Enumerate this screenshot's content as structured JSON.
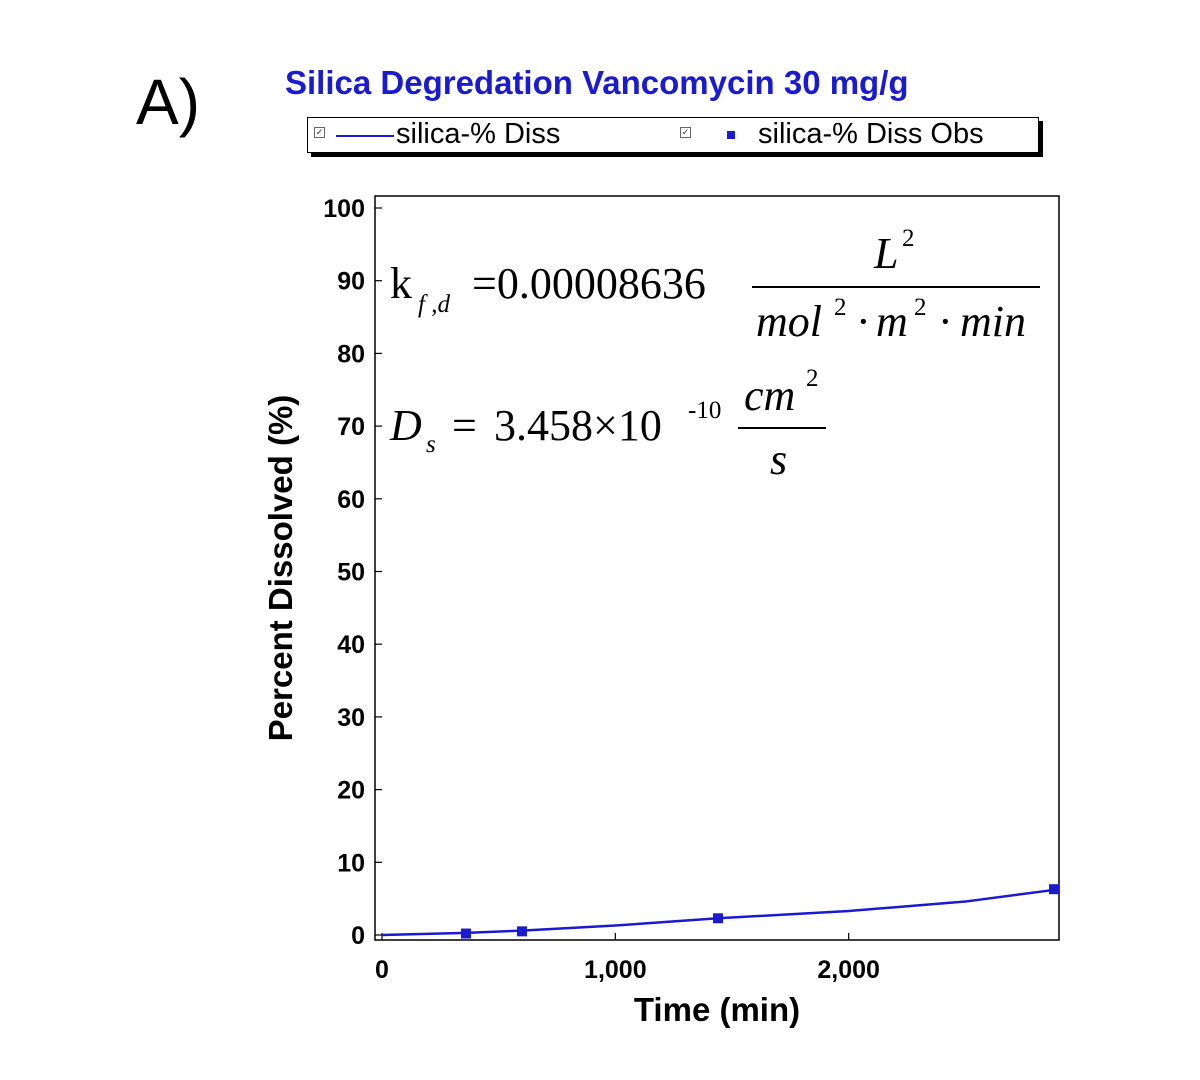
{
  "panel_label": "A)",
  "annotations": {
    "kfd": {
      "symbol_main": "k",
      "symbol_sub": "f ,d",
      "equals_value": "=0.00008636",
      "numerator": "L",
      "numerator_exp": "2",
      "den_mol": "mol",
      "den_mol_exp": "2",
      "den_dot1": "·",
      "den_m": "m",
      "den_m_exp": "2",
      "den_dot2": "·",
      "den_min": "min"
    },
    "ds": {
      "symbol_main": "D",
      "symbol_sub": "s",
      "equals": "=",
      "value": "3.458×10",
      "exponent": "-10",
      "numerator": "cm",
      "numerator_exp": "2",
      "denominator": "s"
    }
  },
  "colors": {
    "series": "#1a1acf",
    "title": "#1a1acf",
    "axis": "#000000"
  },
  "chart_data": {
    "type": "line",
    "title": "Silica Degredation Vancomycin 30 mg/g",
    "xlabel": "Time (min)",
    "ylabel": "Percent Dissolved (%)",
    "xlim": [
      0,
      2880
    ],
    "ylim": [
      0,
      100
    ],
    "x_ticks": [
      0,
      1000,
      2000
    ],
    "x_tick_labels": [
      "0",
      "1,000",
      "2,000"
    ],
    "y_ticks": [
      0,
      10,
      20,
      30,
      40,
      50,
      60,
      70,
      80,
      90,
      100
    ],
    "y_tick_labels": [
      "0",
      "10",
      "20",
      "30",
      "40",
      "50",
      "60",
      "70",
      "80",
      "90",
      "100"
    ],
    "grid": false,
    "legend_position": "top",
    "series": [
      {
        "name": "silica-% Diss",
        "style": "line",
        "x": [
          0,
          360,
          600,
          1000,
          1440,
          2000,
          2500,
          2880
        ],
        "y": [
          0,
          0.3,
          0.6,
          1.3,
          2.3,
          3.3,
          4.6,
          6.2
        ]
      },
      {
        "name": "silica-% Diss Obs",
        "style": "marker",
        "x": [
          360,
          600,
          1440,
          2880
        ],
        "y": [
          0.2,
          0.5,
          2.3,
          6.3
        ]
      }
    ]
  }
}
